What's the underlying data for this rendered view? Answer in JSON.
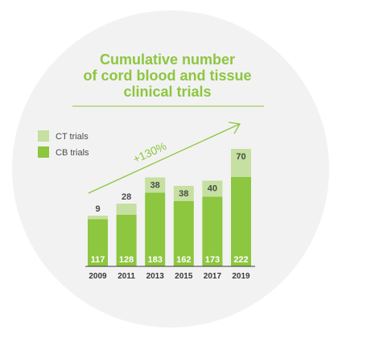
{
  "colors": {
    "primary_green": "#8dc63f",
    "light_green": "#c5e0a0",
    "background_circle": "#f2f2f2",
    "text_dark": "#3a3a3a"
  },
  "chart_data": {
    "type": "bar",
    "stacked": true,
    "title_lines": [
      "Cumulative number",
      "of cord blood and tissue",
      "clinical trials"
    ],
    "categories": [
      "2009",
      "2011",
      "2013",
      "2015",
      "2017",
      "2019"
    ],
    "series": [
      {
        "name": "CB trials",
        "values": [
          117,
          128,
          183,
          162,
          173,
          222
        ]
      },
      {
        "name": "CT trials",
        "values": [
          9,
          28,
          38,
          38,
          40,
          70
        ]
      }
    ],
    "annotation": "+130%",
    "legend_position": "top-left"
  }
}
